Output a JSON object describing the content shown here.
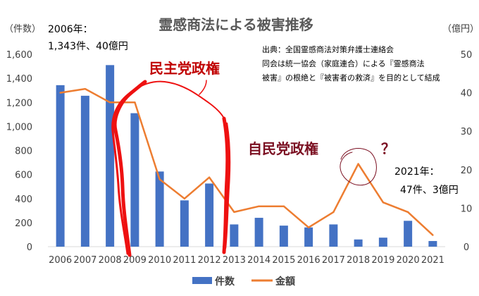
{
  "chart_data": {
    "type": "bar",
    "title": "霊感商法による被害推移",
    "y_left_label": "（件数）",
    "y_right_label": "（億円）",
    "ylim_left": [
      0,
      1600
    ],
    "ylim_right": [
      0,
      50
    ],
    "y_left_ticks": [
      "0",
      "200",
      "400",
      "600",
      "800",
      "1,000",
      "1,200",
      "1,400",
      "1,600"
    ],
    "y_right_ticks": [
      "0",
      "10",
      "20",
      "30",
      "40",
      "50"
    ],
    "categories": [
      "2006",
      "2007",
      "2008",
      "2009",
      "2010",
      "2011",
      "2012",
      "2013",
      "2014",
      "2015",
      "2016",
      "2017",
      "2018",
      "2019",
      "2020",
      "2021"
    ],
    "series": [
      {
        "name": "件数",
        "type": "bar",
        "axis": "left",
        "color": "#4472c4",
        "values": [
          1343,
          1255,
          1510,
          1110,
          625,
          385,
          525,
          185,
          240,
          175,
          160,
          185,
          60,
          75,
          215,
          47
        ]
      },
      {
        "name": "金額",
        "type": "line",
        "axis": "right",
        "color": "#ed7d31",
        "values": [
          40,
          41,
          37.5,
          37.5,
          17.5,
          12.5,
          18,
          9,
          10.5,
          10.5,
          5,
          9,
          21.5,
          11.5,
          9,
          3
        ]
      }
    ],
    "legend": "bottom",
    "grid": false,
    "annotations": {
      "start_label_1": "2006年：",
      "start_label_2": "1,343件、40億円",
      "end_label_1": "2021年：",
      "end_label_2": "47件、3億円",
      "dpj_label": "民主党政権",
      "ldp_label": "自民党政権",
      "question_mark": "？",
      "source_1": "出典：全国霊感商法対策弁護士連絡会",
      "source_2": "同会は統一協会（家庭連合）による『霊感商法",
      "source_3": "被害』の根絶と『被害者の救済』を目的として結成"
    }
  }
}
